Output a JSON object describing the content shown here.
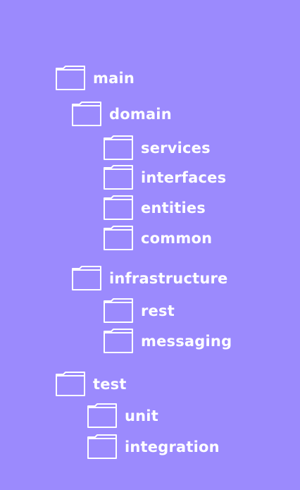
{
  "colors": {
    "background": "#9b8afd",
    "foreground": "#ffffff"
  },
  "tree": {
    "main": {
      "label": "main",
      "icon": "folder-icon"
    },
    "domain": {
      "label": "domain",
      "icon": "folder-icon"
    },
    "services": {
      "label": "services",
      "icon": "folder-icon"
    },
    "interfaces": {
      "label": "interfaces",
      "icon": "folder-icon"
    },
    "entities": {
      "label": "entities",
      "icon": "folder-icon"
    },
    "common": {
      "label": "common",
      "icon": "folder-icon"
    },
    "infrastructure": {
      "label": "infrastructure",
      "icon": "folder-icon"
    },
    "rest": {
      "label": "rest",
      "icon": "folder-icon"
    },
    "messaging": {
      "label": "messaging",
      "icon": "folder-icon"
    },
    "test": {
      "label": "test",
      "icon": "folder-icon"
    },
    "unit": {
      "label": "unit",
      "icon": "folder-icon"
    },
    "integration": {
      "label": "integration",
      "icon": "folder-icon"
    }
  }
}
